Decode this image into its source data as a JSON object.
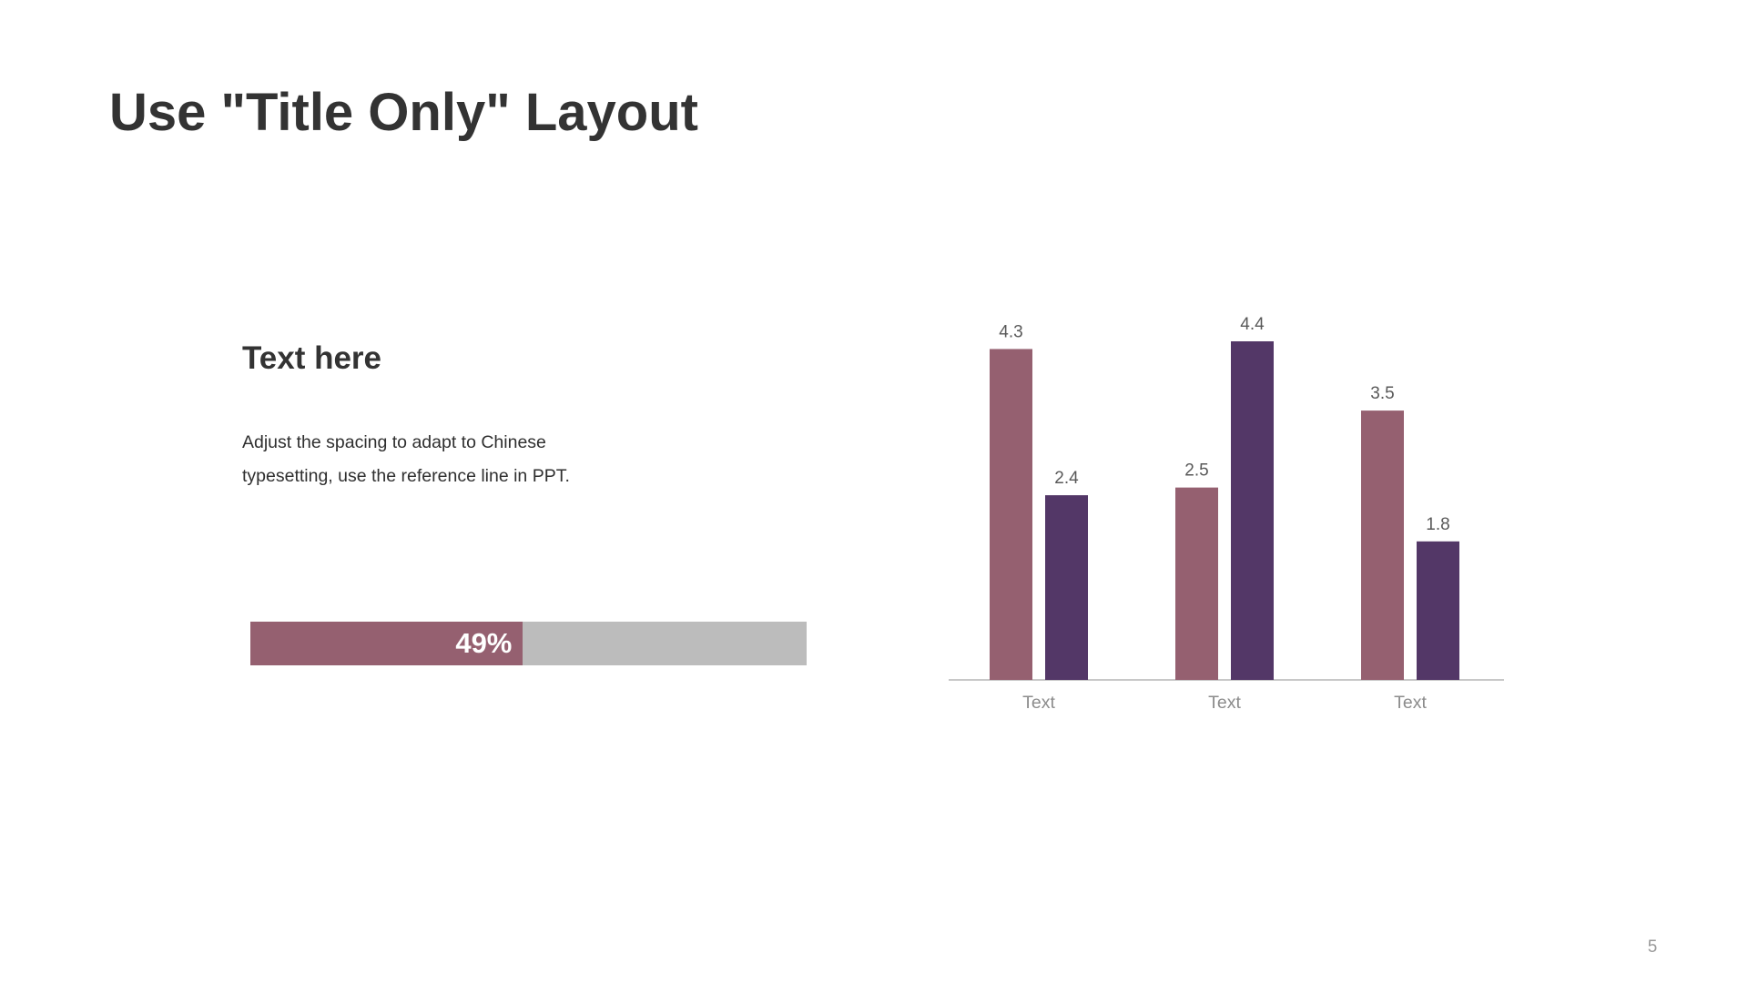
{
  "slide": {
    "title": "Use \"Title Only\" Layout",
    "page_number": "5"
  },
  "text_block": {
    "heading": "Text here",
    "body": "Adjust the spacing to adapt to Chinese typesetting, use the reference line in PPT."
  },
  "progress": {
    "value": 0.49,
    "label": "49%"
  },
  "colors": {
    "series_1": "#956070",
    "series_2": "#533767",
    "progress_track": "#bcbcbc",
    "axis": "#c8c8c8",
    "tick_label": "#8c8c8c",
    "data_label": "#595959"
  },
  "chart_data": {
    "type": "bar",
    "categories": [
      "Text",
      "Text",
      "Text"
    ],
    "series": [
      {
        "values": [
          4.3,
          2.5,
          3.5
        ],
        "color": "#956070"
      },
      {
        "values": [
          2.4,
          4.4,
          1.8
        ],
        "color": "#533767"
      }
    ],
    "ylim": [
      0,
      4.4
    ],
    "data_labels": true,
    "grid": false,
    "legend": "none"
  }
}
